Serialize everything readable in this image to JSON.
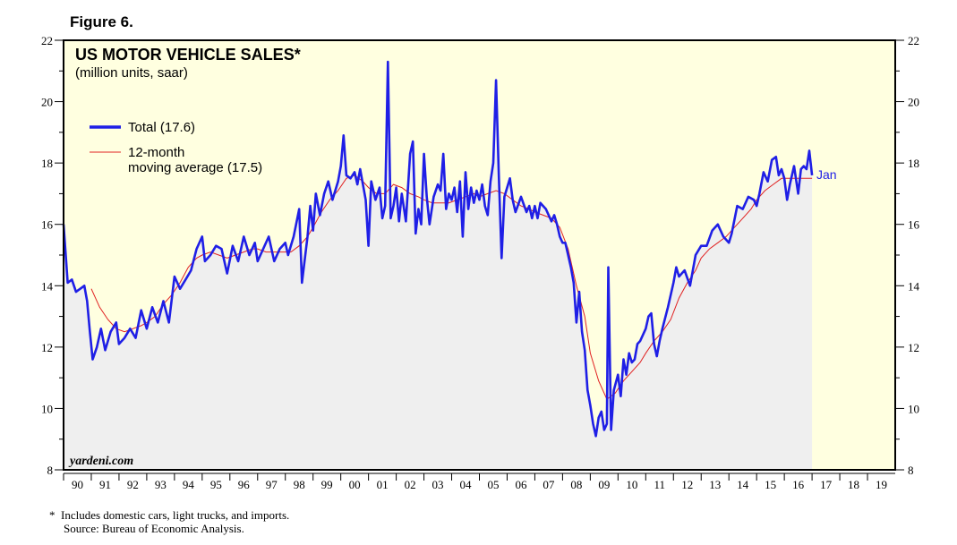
{
  "figure_label": "Figure 6.",
  "chart_data": {
    "type": "line",
    "title": "US MOTOR VEHICLE SALES*",
    "subtitle": "(million units, saar)",
    "ylim": [
      8,
      22
    ],
    "y_ticks": [
      8,
      10,
      12,
      14,
      16,
      18,
      20,
      22
    ],
    "x_range": [
      1990,
      2020
    ],
    "x_labels": [
      "90",
      "91",
      "92",
      "93",
      "94",
      "95",
      "96",
      "97",
      "98",
      "99",
      "00",
      "01",
      "02",
      "03",
      "04",
      "05",
      "06",
      "07",
      "08",
      "09",
      "10",
      "11",
      "12",
      "13",
      "14",
      "15",
      "16",
      "17",
      "18",
      "19"
    ],
    "watermark": "yardeni.com",
    "end_label": "Jan",
    "legend": [
      {
        "label": "Total (17.6)",
        "color": "#1f1fe6"
      },
      {
        "label": "12-month",
        "label2": "moving average (17.5)",
        "color": "#e02020"
      }
    ],
    "series": [
      {
        "name": "Total (17.6)",
        "color": "#1f1fe6",
        "points": [
          [
            1990.0,
            16.0
          ],
          [
            1990.15,
            14.1
          ],
          [
            1990.3,
            14.2
          ],
          [
            1990.45,
            13.8
          ],
          [
            1990.6,
            13.9
          ],
          [
            1990.75,
            14.0
          ],
          [
            1990.85,
            13.5
          ],
          [
            1990.95,
            12.5
          ],
          [
            1991.05,
            11.6
          ],
          [
            1991.2,
            12.0
          ],
          [
            1991.35,
            12.6
          ],
          [
            1991.5,
            11.9
          ],
          [
            1991.7,
            12.5
          ],
          [
            1991.9,
            12.8
          ],
          [
            1992.0,
            12.1
          ],
          [
            1992.2,
            12.3
          ],
          [
            1992.4,
            12.6
          ],
          [
            1992.6,
            12.3
          ],
          [
            1992.8,
            13.2
          ],
          [
            1993.0,
            12.6
          ],
          [
            1993.2,
            13.3
          ],
          [
            1993.4,
            12.8
          ],
          [
            1993.6,
            13.5
          ],
          [
            1993.8,
            12.8
          ],
          [
            1994.0,
            14.3
          ],
          [
            1994.2,
            13.9
          ],
          [
            1994.4,
            14.2
          ],
          [
            1994.6,
            14.5
          ],
          [
            1994.8,
            15.2
          ],
          [
            1995.0,
            15.6
          ],
          [
            1995.1,
            14.8
          ],
          [
            1995.3,
            15.0
          ],
          [
            1995.5,
            15.3
          ],
          [
            1995.7,
            15.2
          ],
          [
            1995.9,
            14.4
          ],
          [
            1996.1,
            15.3
          ],
          [
            1996.3,
            14.8
          ],
          [
            1996.5,
            15.6
          ],
          [
            1996.7,
            15.0
          ],
          [
            1996.9,
            15.4
          ],
          [
            1997.0,
            14.8
          ],
          [
            1997.2,
            15.2
          ],
          [
            1997.4,
            15.6
          ],
          [
            1997.6,
            14.8
          ],
          [
            1997.8,
            15.2
          ],
          [
            1998.0,
            15.4
          ],
          [
            1998.1,
            15.0
          ],
          [
            1998.3,
            15.6
          ],
          [
            1998.5,
            16.5
          ],
          [
            1998.6,
            14.1
          ],
          [
            1998.8,
            15.6
          ],
          [
            1998.9,
            16.6
          ],
          [
            1999.0,
            15.8
          ],
          [
            1999.1,
            17.0
          ],
          [
            1999.25,
            16.3
          ],
          [
            1999.4,
            17.0
          ],
          [
            1999.55,
            17.4
          ],
          [
            1999.7,
            16.8
          ],
          [
            1999.8,
            17.1
          ],
          [
            1999.9,
            17.4
          ],
          [
            2000.0,
            17.9
          ],
          [
            2000.1,
            18.9
          ],
          [
            2000.2,
            17.6
          ],
          [
            2000.35,
            17.5
          ],
          [
            2000.5,
            17.7
          ],
          [
            2000.6,
            17.3
          ],
          [
            2000.7,
            17.8
          ],
          [
            2000.8,
            17.3
          ],
          [
            2000.9,
            16.8
          ],
          [
            2001.0,
            15.3
          ],
          [
            2001.1,
            17.4
          ],
          [
            2001.25,
            16.8
          ],
          [
            2001.4,
            17.2
          ],
          [
            2001.5,
            16.2
          ],
          [
            2001.6,
            16.6
          ],
          [
            2001.7,
            21.3
          ],
          [
            2001.8,
            16.2
          ],
          [
            2001.9,
            16.6
          ],
          [
            2002.0,
            17.2
          ],
          [
            2002.1,
            16.1
          ],
          [
            2002.2,
            17.0
          ],
          [
            2002.35,
            16.1
          ],
          [
            2002.5,
            18.3
          ],
          [
            2002.6,
            18.7
          ],
          [
            2002.7,
            15.7
          ],
          [
            2002.8,
            16.5
          ],
          [
            2002.9,
            16.0
          ],
          [
            2003.0,
            18.3
          ],
          [
            2003.1,
            16.9
          ],
          [
            2003.2,
            16.0
          ],
          [
            2003.35,
            16.9
          ],
          [
            2003.5,
            17.3
          ],
          [
            2003.6,
            17.1
          ],
          [
            2003.7,
            18.3
          ],
          [
            2003.8,
            16.5
          ],
          [
            2003.9,
            17.0
          ],
          [
            2004.0,
            16.8
          ],
          [
            2004.1,
            17.2
          ],
          [
            2004.2,
            16.4
          ],
          [
            2004.3,
            17.4
          ],
          [
            2004.4,
            15.6
          ],
          [
            2004.5,
            17.7
          ],
          [
            2004.6,
            16.5
          ],
          [
            2004.7,
            17.2
          ],
          [
            2004.8,
            16.7
          ],
          [
            2004.9,
            17.1
          ],
          [
            2005.0,
            16.8
          ],
          [
            2005.1,
            17.3
          ],
          [
            2005.2,
            16.6
          ],
          [
            2005.3,
            16.3
          ],
          [
            2005.4,
            17.4
          ],
          [
            2005.5,
            18.0
          ],
          [
            2005.6,
            20.7
          ],
          [
            2005.7,
            17.6
          ],
          [
            2005.8,
            14.9
          ],
          [
            2005.9,
            16.9
          ],
          [
            2006.0,
            17.2
          ],
          [
            2006.1,
            17.5
          ],
          [
            2006.2,
            16.8
          ],
          [
            2006.3,
            16.4
          ],
          [
            2006.5,
            16.9
          ],
          [
            2006.7,
            16.4
          ],
          [
            2006.8,
            16.6
          ],
          [
            2006.9,
            16.2
          ],
          [
            2007.0,
            16.6
          ],
          [
            2007.1,
            16.2
          ],
          [
            2007.2,
            16.7
          ],
          [
            2007.4,
            16.5
          ],
          [
            2007.6,
            16.1
          ],
          [
            2007.7,
            16.3
          ],
          [
            2007.8,
            16.0
          ],
          [
            2007.9,
            15.6
          ],
          [
            2008.0,
            15.4
          ],
          [
            2008.1,
            15.4
          ],
          [
            2008.2,
            15.0
          ],
          [
            2008.3,
            14.6
          ],
          [
            2008.4,
            14.1
          ],
          [
            2008.5,
            12.8
          ],
          [
            2008.6,
            13.8
          ],
          [
            2008.7,
            12.5
          ],
          [
            2008.8,
            11.9
          ],
          [
            2008.9,
            10.6
          ],
          [
            2009.0,
            10.1
          ],
          [
            2009.1,
            9.5
          ],
          [
            2009.2,
            9.1
          ],
          [
            2009.3,
            9.7
          ],
          [
            2009.4,
            9.9
          ],
          [
            2009.5,
            9.3
          ],
          [
            2009.6,
            9.5
          ],
          [
            2009.65,
            14.6
          ],
          [
            2009.75,
            9.3
          ],
          [
            2009.85,
            10.6
          ],
          [
            2010.0,
            11.1
          ],
          [
            2010.1,
            10.4
          ],
          [
            2010.2,
            11.6
          ],
          [
            2010.3,
            11.1
          ],
          [
            2010.4,
            11.8
          ],
          [
            2010.5,
            11.5
          ],
          [
            2010.6,
            11.6
          ],
          [
            2010.7,
            12.1
          ],
          [
            2010.8,
            12.2
          ],
          [
            2011.0,
            12.6
          ],
          [
            2011.1,
            13.0
          ],
          [
            2011.2,
            13.1
          ],
          [
            2011.3,
            12.1
          ],
          [
            2011.4,
            11.7
          ],
          [
            2011.5,
            12.2
          ],
          [
            2011.6,
            12.6
          ],
          [
            2011.8,
            13.3
          ],
          [
            2012.0,
            14.1
          ],
          [
            2012.1,
            14.6
          ],
          [
            2012.2,
            14.3
          ],
          [
            2012.4,
            14.5
          ],
          [
            2012.6,
            14.0
          ],
          [
            2012.8,
            15.0
          ],
          [
            2013.0,
            15.3
          ],
          [
            2013.2,
            15.3
          ],
          [
            2013.4,
            15.8
          ],
          [
            2013.6,
            16.0
          ],
          [
            2013.8,
            15.6
          ],
          [
            2014.0,
            15.4
          ],
          [
            2014.1,
            15.7
          ],
          [
            2014.3,
            16.6
          ],
          [
            2014.5,
            16.5
          ],
          [
            2014.7,
            16.9
          ],
          [
            2014.9,
            16.8
          ],
          [
            2015.0,
            16.6
          ],
          [
            2015.1,
            17.0
          ],
          [
            2015.25,
            17.7
          ],
          [
            2015.4,
            17.4
          ],
          [
            2015.55,
            18.1
          ],
          [
            2015.7,
            18.2
          ],
          [
            2015.8,
            17.6
          ],
          [
            2015.9,
            17.8
          ],
          [
            2016.0,
            17.5
          ],
          [
            2016.1,
            16.8
          ],
          [
            2016.2,
            17.3
          ],
          [
            2016.35,
            17.9
          ],
          [
            2016.5,
            17.0
          ],
          [
            2016.6,
            17.8
          ],
          [
            2016.7,
            17.9
          ],
          [
            2016.8,
            17.8
          ],
          [
            2016.9,
            18.4
          ],
          [
            2017.0,
            17.6
          ]
        ]
      },
      {
        "name": "12-month moving average (17.5)",
        "color": "#e02020",
        "points": [
          [
            1991.0,
            13.9
          ],
          [
            1991.3,
            13.3
          ],
          [
            1991.6,
            12.9
          ],
          [
            1991.9,
            12.6
          ],
          [
            1992.2,
            12.5
          ],
          [
            1992.5,
            12.6
          ],
          [
            1992.8,
            12.7
          ],
          [
            1993.0,
            12.8
          ],
          [
            1993.3,
            13.0
          ],
          [
            1993.6,
            13.4
          ],
          [
            1993.9,
            13.7
          ],
          [
            1994.2,
            14.1
          ],
          [
            1994.5,
            14.6
          ],
          [
            1994.8,
            14.9
          ],
          [
            1995.0,
            15.0
          ],
          [
            1995.3,
            15.1
          ],
          [
            1995.6,
            15.0
          ],
          [
            1995.9,
            14.9
          ],
          [
            1996.2,
            15.0
          ],
          [
            1996.5,
            15.1
          ],
          [
            1996.8,
            15.2
          ],
          [
            1997.0,
            15.2
          ],
          [
            1997.3,
            15.1
          ],
          [
            1997.6,
            15.1
          ],
          [
            1997.9,
            15.1
          ],
          [
            1998.2,
            15.1
          ],
          [
            1998.5,
            15.3
          ],
          [
            1998.8,
            15.6
          ],
          [
            1999.0,
            15.9
          ],
          [
            1999.3,
            16.4
          ],
          [
            1999.6,
            16.8
          ],
          [
            1999.9,
            17.1
          ],
          [
            2000.2,
            17.5
          ],
          [
            2000.5,
            17.6
          ],
          [
            2000.8,
            17.4
          ],
          [
            2001.0,
            17.2
          ],
          [
            2001.3,
            17.0
          ],
          [
            2001.6,
            17.0
          ],
          [
            2001.9,
            17.3
          ],
          [
            2002.2,
            17.2
          ],
          [
            2002.5,
            17.0
          ],
          [
            2002.8,
            16.9
          ],
          [
            2003.0,
            16.8
          ],
          [
            2003.3,
            16.7
          ],
          [
            2003.6,
            16.7
          ],
          [
            2003.9,
            16.7
          ],
          [
            2004.2,
            16.8
          ],
          [
            2004.5,
            16.9
          ],
          [
            2004.8,
            17.0
          ],
          [
            2005.0,
            16.9
          ],
          [
            2005.3,
            17.0
          ],
          [
            2005.6,
            17.1
          ],
          [
            2005.9,
            17.0
          ],
          [
            2006.2,
            16.8
          ],
          [
            2006.5,
            16.6
          ],
          [
            2006.8,
            16.5
          ],
          [
            2007.0,
            16.4
          ],
          [
            2007.3,
            16.3
          ],
          [
            2007.6,
            16.2
          ],
          [
            2007.9,
            15.9
          ],
          [
            2008.2,
            15.2
          ],
          [
            2008.5,
            14.0
          ],
          [
            2008.8,
            13.0
          ],
          [
            2009.0,
            11.8
          ],
          [
            2009.3,
            10.9
          ],
          [
            2009.6,
            10.3
          ],
          [
            2009.9,
            10.5
          ],
          [
            2010.2,
            10.9
          ],
          [
            2010.5,
            11.2
          ],
          [
            2010.8,
            11.5
          ],
          [
            2011.0,
            11.8
          ],
          [
            2011.3,
            12.2
          ],
          [
            2011.6,
            12.5
          ],
          [
            2011.9,
            12.9
          ],
          [
            2012.2,
            13.6
          ],
          [
            2012.5,
            14.1
          ],
          [
            2012.8,
            14.5
          ],
          [
            2013.0,
            14.9
          ],
          [
            2013.3,
            15.2
          ],
          [
            2013.6,
            15.4
          ],
          [
            2013.9,
            15.6
          ],
          [
            2014.2,
            15.9
          ],
          [
            2014.5,
            16.2
          ],
          [
            2014.8,
            16.5
          ],
          [
            2015.0,
            16.8
          ],
          [
            2015.3,
            17.1
          ],
          [
            2015.6,
            17.3
          ],
          [
            2015.9,
            17.5
          ],
          [
            2016.2,
            17.5
          ],
          [
            2016.5,
            17.5
          ],
          [
            2016.8,
            17.5
          ],
          [
            2017.0,
            17.5
          ]
        ]
      }
    ]
  },
  "footnote_line1": "*  Includes domestic cars, light trucks, and imports.",
  "footnote_line2": "Source: Bureau of Economic Analysis."
}
